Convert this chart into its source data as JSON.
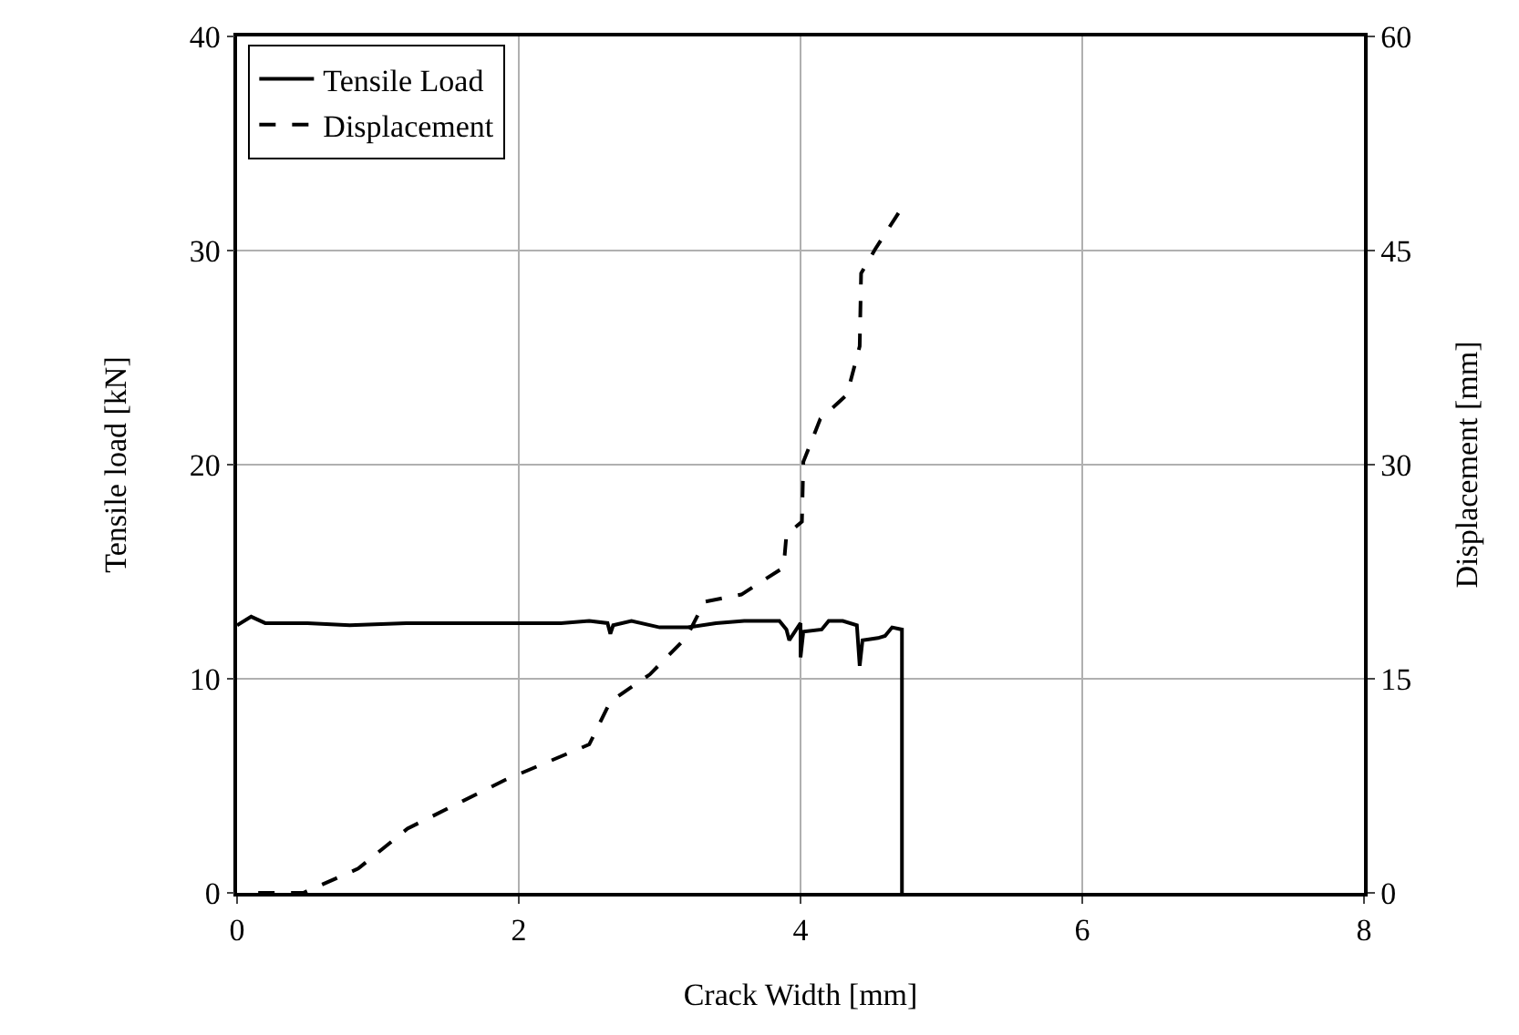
{
  "chart_data": {
    "type": "line",
    "xlabel": "Crack Width [mm]",
    "ylabel": "Tensile load [kN]",
    "y2label": "Displacement [mm]",
    "xlim": [
      0,
      8
    ],
    "xticks": [
      0,
      2,
      4,
      6,
      8
    ],
    "ylim": [
      0,
      40
    ],
    "yticks": [
      0,
      10,
      20,
      30,
      40
    ],
    "y2lim": [
      0,
      60
    ],
    "y2ticks": [
      0,
      15,
      30,
      45,
      60
    ],
    "grid": true,
    "legend": "top left",
    "marker": "none",
    "series": [
      {
        "name": "Tensile Load",
        "color": "#000000",
        "line_style": "solid",
        "x": [
          0,
          0.1,
          0.2,
          0.5,
          0.8,
          1.2,
          1.6,
          2.0,
          2.3,
          2.5,
          2.63,
          2.65,
          2.67,
          2.8,
          3.0,
          3.2,
          3.4,
          3.6,
          3.85,
          3.9,
          3.92,
          3.97,
          4.0,
          4.0,
          4.02,
          4.15,
          4.2,
          4.3,
          4.4,
          4.42,
          4.44,
          4.55,
          4.6,
          4.65,
          4.72,
          4.72
        ],
        "values": [
          12.5,
          12.9,
          12.6,
          12.6,
          12.5,
          12.6,
          12.6,
          12.6,
          12.6,
          12.7,
          12.6,
          12.1,
          12.5,
          12.7,
          12.4,
          12.4,
          12.6,
          12.7,
          12.7,
          12.3,
          11.8,
          12.3,
          12.6,
          11.0,
          12.2,
          12.3,
          12.7,
          12.7,
          12.5,
          10.6,
          11.8,
          11.9,
          12.0,
          12.4,
          12.3,
          0
        ]
      },
      {
        "name": "Displacement",
        "color": "#000000",
        "line_style": "dashed",
        "axis": "y2",
        "x": [
          0.15,
          0.47,
          0.86,
          1.21,
          1.9,
          2.5,
          2.65,
          2.93,
          3.19,
          3.32,
          3.58,
          3.88,
          3.9,
          4.01,
          4.02,
          4.14,
          4.33,
          4.42,
          4.43,
          4.53,
          4.7
        ],
        "values": [
          0,
          0,
          1.7,
          4.5,
          7.9,
          10.4,
          13.4,
          15.3,
          17.9,
          20.4,
          20.9,
          22.8,
          25.1,
          26.0,
          30.2,
          33.2,
          34.9,
          38.3,
          43.4,
          45.1,
          47.7
        ]
      }
    ]
  }
}
